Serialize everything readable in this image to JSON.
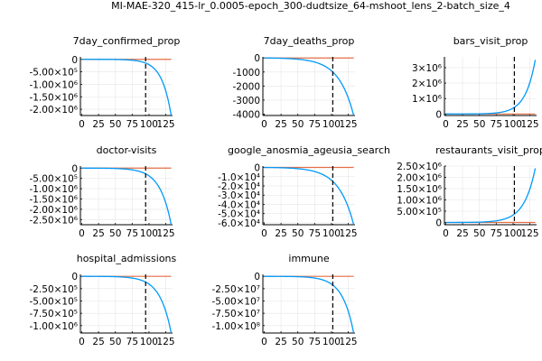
{
  "title": "MI-MAE-320_415-lr_0.0005-epoch_300-dudtsize_64-mshoot_lens_2-batch_size_4",
  "colors": {
    "series1": "#009AFA",
    "series2": "#E26F46",
    "marker": "#000000",
    "grid": "#e6e6e6"
  },
  "chart_data": [
    {
      "type": "line",
      "title": "7day_confirmed_prop",
      "xlim": [
        -2,
        135
      ],
      "ylim": [
        -2250000,
        100000
      ],
      "xticks": [
        0,
        25,
        50,
        75,
        100,
        125
      ],
      "xtick_labels": [
        "0",
        "25",
        "50",
        "75",
        "100",
        "125"
      ],
      "yticks": [
        0,
        -500000,
        -1000000,
        -1500000,
        -2000000
      ],
      "ytick_labels": [
        "0",
        "-5.00×10⁵",
        "-1.00×10⁶",
        "-1.50×10⁶",
        "-2.00×10⁶"
      ],
      "vline": 95,
      "growth": "down",
      "yend": -2250000,
      "k": 9.5
    },
    {
      "type": "line",
      "title": "7day_deaths_prop",
      "xlim": [
        -2,
        135
      ],
      "ylim": [
        -4100,
        80
      ],
      "xticks": [
        0,
        25,
        50,
        75,
        100,
        125
      ],
      "xtick_labels": [
        "0",
        "25",
        "50",
        "75",
        "100",
        "125"
      ],
      "yticks": [
        0,
        -1000,
        -2000,
        -3000,
        -4000
      ],
      "ytick_labels": [
        "0",
        "-1000",
        "-2000",
        "-3000",
        "-4000"
      ],
      "vline": 102,
      "growth": "down",
      "yend": -4100,
      "k": 6
    },
    {
      "type": "line",
      "title": "bars_visit_prop",
      "xlim": [
        -2,
        135
      ],
      "ylim": [
        -100000,
        3700000
      ],
      "xticks": [
        0,
        25,
        50,
        75,
        100,
        125
      ],
      "xtick_labels": [
        "0",
        "25",
        "50",
        "75",
        "100",
        "125"
      ],
      "yticks": [
        0,
        1000000,
        2000000,
        3000000
      ],
      "ytick_labels": [
        "0",
        "1×10⁶",
        "2×10⁶",
        "3×10⁶"
      ],
      "vline": 102,
      "growth": "up",
      "yend": 3500000,
      "k": 9
    },
    {
      "type": "line",
      "title": "doctor-visits",
      "xlim": [
        -2,
        135
      ],
      "ylim": [
        -2750000,
        100000
      ],
      "xticks": [
        0,
        25,
        50,
        75,
        100,
        125
      ],
      "xtick_labels": [
        "0",
        "25",
        "50",
        "75",
        "100",
        "125"
      ],
      "yticks": [
        0,
        -500000,
        -1000000,
        -1500000,
        -2000000,
        -2500000
      ],
      "ytick_labels": [
        "0",
        "-5.00×10⁵",
        "-1.00×10⁶",
        "-1.50×10⁶",
        "-2.00×10⁶",
        "-2.50×10⁶"
      ],
      "vline": 95,
      "growth": "down",
      "yend": -2750000,
      "k": 8
    },
    {
      "type": "line",
      "title": "google_anosmia_ageusia_search",
      "xlim": [
        -2,
        135
      ],
      "ylim": [
        -62000,
        1500
      ],
      "xticks": [
        0,
        25,
        50,
        75,
        100,
        125
      ],
      "xtick_labels": [
        "0",
        "25",
        "50",
        "75",
        "100",
        "125"
      ],
      "yticks": [
        0,
        -10000,
        -20000,
        -30000,
        -40000,
        -50000,
        -60000
      ],
      "ytick_labels": [
        "0",
        "-1.0×10⁴",
        "-2.0×10⁴",
        "-3.0×10⁴",
        "-4.0×10⁴",
        "-5.0×10⁴",
        "-6.0×10⁴"
      ],
      "vline": 102,
      "growth": "down",
      "yend": -62000,
      "k": 6
    },
    {
      "type": "line",
      "title": "restaurants_visit_prop",
      "xlim": [
        -2,
        135
      ],
      "ylim": [
        -100000,
        2500000
      ],
      "xticks": [
        0,
        25,
        50,
        75,
        100,
        125
      ],
      "xtick_labels": [
        "0",
        "25",
        "50",
        "75",
        "100",
        "125"
      ],
      "yticks": [
        0,
        500000,
        1000000,
        1500000,
        2000000,
        2500000
      ],
      "ytick_labels": [
        "0",
        "5.00×10⁵",
        "1.00×10⁶",
        "1.50×10⁶",
        "2.00×10⁶",
        "2.50×10⁶"
      ],
      "vline": 102,
      "growth": "up",
      "yend": 2400000,
      "k": 8
    },
    {
      "type": "line",
      "title": "hospital_admissions",
      "xlim": [
        -2,
        135
      ],
      "ylim": [
        -1150000,
        40000
      ],
      "xticks": [
        0,
        25,
        50,
        75,
        100,
        125
      ],
      "xtick_labels": [
        "0",
        "25",
        "50",
        "75",
        "100",
        "125"
      ],
      "yticks": [
        0,
        -250000,
        -500000,
        -750000,
        -1000000
      ],
      "ytick_labels": [
        "0",
        "-2.50×10⁵",
        "-5.00×10⁵",
        "-7.50×10⁵",
        "-1.00×10⁶"
      ],
      "vline": 95,
      "growth": "down",
      "yend": -1150000,
      "k": 8
    },
    {
      "type": "line",
      "title": "immune",
      "xlim": [
        -2,
        135
      ],
      "ylim": [
        -115000000,
        4000000
      ],
      "xticks": [
        0,
        25,
        50,
        75,
        100,
        125
      ],
      "xtick_labels": [
        "0",
        "25",
        "50",
        "75",
        "100",
        "125"
      ],
      "yticks": [
        0,
        -25000000,
        -50000000,
        -75000000,
        -100000000
      ],
      "ytick_labels": [
        "0",
        "-2.50×10⁷",
        "-5.00×10⁷",
        "-7.50×10⁷",
        "-1.00×10⁸"
      ],
      "vline": 102,
      "growth": "down",
      "yend": -115000000,
      "k": 8
    }
  ]
}
